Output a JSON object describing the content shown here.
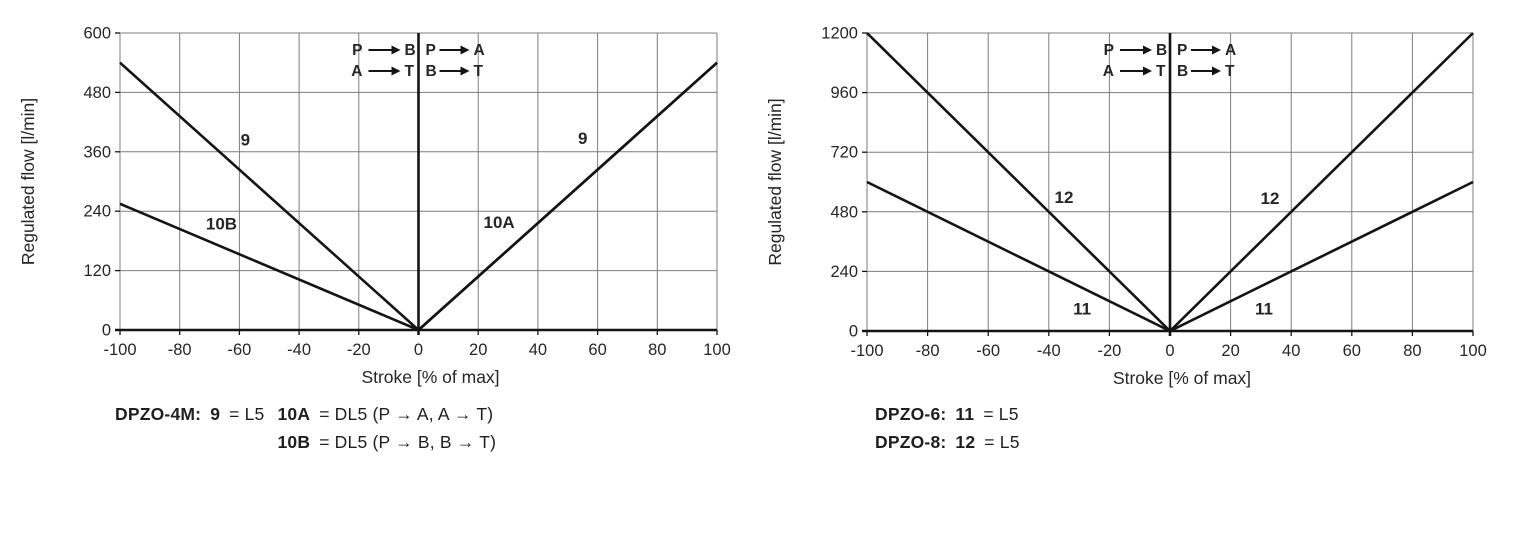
{
  "page": {
    "background": "#ffffff",
    "text_color": "#262626",
    "grid_color": "#7d7d7d",
    "curve_color": "#141414"
  },
  "chart_data": [
    {
      "type": "line",
      "model": "DPZO-4M",
      "xlabel": "Stroke [% of max]",
      "ylabel": "Regulated flow [l/min]",
      "xlim": [
        -100,
        100
      ],
      "ylim": [
        0,
        600
      ],
      "x_ticks": [
        -100,
        -80,
        -60,
        -40,
        -20,
        0,
        20,
        40,
        60,
        80,
        100
      ],
      "y_ticks": [
        0,
        120,
        240,
        360,
        480,
        600
      ],
      "grid": true,
      "series": [
        {
          "name": "9",
          "points": [
            [
              -100,
              540
            ],
            [
              0,
              0
            ],
            [
              100,
              540
            ]
          ]
        },
        {
          "name": "10A",
          "points": [
            [
              0,
              0
            ],
            [
              100,
              540
            ]
          ]
        },
        {
          "name": "10B",
          "points": [
            [
              -100,
              255
            ],
            [
              0,
              0
            ]
          ]
        }
      ],
      "curve_labels": [
        {
          "text": "9",
          "x": -58,
          "y": 385
        },
        {
          "text": "10B",
          "x": -66,
          "y": 215
        },
        {
          "text": "10A",
          "x": 27,
          "y": 218
        },
        {
          "text": "9",
          "x": 55,
          "y": 388
        }
      ],
      "quadrant_legend": {
        "left_rows": [
          [
            "P",
            "B"
          ],
          [
            "A",
            "T"
          ]
        ],
        "right_rows": [
          [
            "P",
            "A"
          ],
          [
            "B",
            "T"
          ]
        ]
      },
      "caption": {
        "prefix": [
          {
            "t": "DPZO-4M:",
            "b": true
          },
          {
            "t": "9",
            "b": true
          },
          {
            "t": "= L5",
            "b": false
          }
        ],
        "entries": [
          [
            {
              "t": "10A",
              "b": true
            },
            {
              "t": "= DL5 (P → A, A → T)",
              "b": false
            }
          ],
          [
            {
              "t": "10B",
              "b": true
            },
            {
              "t": "= DL5 (P → B, B → T)",
              "b": false
            }
          ]
        ]
      }
    },
    {
      "type": "line",
      "model": "DPZO-6 / DPZO-8",
      "xlabel": "Stroke [% of max]",
      "ylabel": "Regulated flow [l/min]",
      "xlim": [
        -100,
        100
      ],
      "ylim": [
        0,
        1200
      ],
      "x_ticks": [
        -100,
        -80,
        -60,
        -40,
        -20,
        0,
        20,
        40,
        60,
        80,
        100
      ],
      "y_ticks": [
        0,
        240,
        480,
        720,
        960,
        1200
      ],
      "grid": true,
      "series": [
        {
          "name": "12",
          "points": [
            [
              -100,
              1200
            ],
            [
              0,
              0
            ],
            [
              100,
              1200
            ]
          ]
        },
        {
          "name": "11",
          "points": [
            [
              -100,
              600
            ],
            [
              0,
              0
            ],
            [
              100,
              600
            ]
          ]
        }
      ],
      "curve_labels": [
        {
          "text": "12",
          "x": -35,
          "y": 540
        },
        {
          "text": "11",
          "x": -29,
          "y": 90
        },
        {
          "text": "12",
          "x": 33,
          "y": 535
        },
        {
          "text": "11",
          "x": 31,
          "y": 90
        }
      ],
      "quadrant_legend": {
        "left_rows": [
          [
            "P",
            "B"
          ],
          [
            "A",
            "T"
          ]
        ],
        "right_rows": [
          [
            "P",
            "A"
          ],
          [
            "B",
            "T"
          ]
        ]
      },
      "caption": {
        "prefix": [],
        "entries": [
          [
            {
              "t": "DPZO-6:",
              "b": true
            },
            {
              "t": "11",
              "b": true
            },
            {
              "t": "= L5",
              "b": false
            }
          ],
          [
            {
              "t": "DPZO-8:",
              "b": true
            },
            {
              "t": "12",
              "b": true
            },
            {
              "t": "= L5",
              "b": false
            }
          ]
        ]
      }
    }
  ]
}
